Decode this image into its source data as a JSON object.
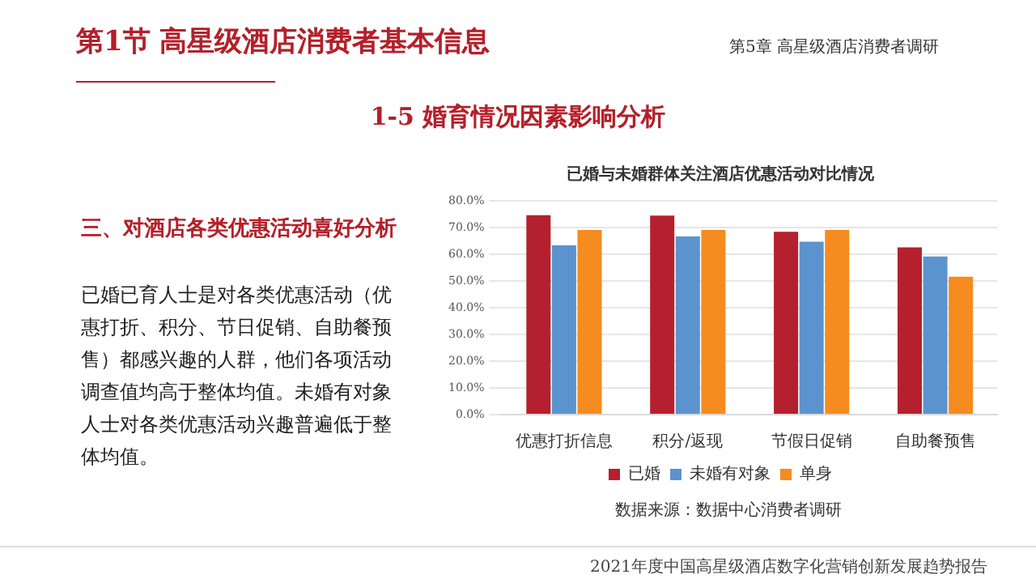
{
  "chart_data": {
    "type": "bar",
    "title": "已婚与未婚群体关注酒店优惠活动对比情况",
    "categories": [
      "优惠打折信息",
      "积分/返现",
      "节假日促销",
      "自助餐预售"
    ],
    "series": [
      {
        "name": "已婚",
        "color": "#b5202e",
        "values": [
          74.6,
          74.5,
          68.4,
          62.6
        ]
      },
      {
        "name": "未婚有对象",
        "color": "#5b93cf",
        "values": [
          63.3,
          66.7,
          64.7,
          59.2
        ]
      },
      {
        "name": "单身",
        "color": "#f68b1f",
        "values": [
          69.1,
          69.1,
          69.1,
          51.6
        ]
      }
    ],
    "ylim": [
      0,
      80
    ],
    "yticks": [
      {
        "value": 0,
        "label": "0.0%"
      },
      {
        "value": 10,
        "label": "10.0%"
      },
      {
        "value": 20,
        "label": "20.0%"
      },
      {
        "value": 30,
        "label": "30.0%"
      },
      {
        "value": 40,
        "label": "40.0%"
      },
      {
        "value": 50,
        "label": "50.0%"
      },
      {
        "value": 60,
        "label": "60.0%"
      },
      {
        "value": 70,
        "label": "70.0%"
      },
      {
        "value": 80,
        "label": "80.0%"
      }
    ],
    "grid": "y",
    "legend": "bottom",
    "annotations": [
      "第1节 高星级酒店消费者基本信息",
      "第5章 高星级酒店消费者调研",
      "1-5 婚育情况因素影响分析",
      "三、对酒店各类优惠活动喜好分析",
      "已婚已育人士是对各类优惠活动（优惠打折、积分、节日促销、自助餐预售）都感兴趣的人群，他们各项活动调查值均高于整体均值。未婚有对象人士对各类优惠活动兴趣普遍低于整体均值。",
      "数据来源：数据中心消费者调研",
      "2021年度中国高星级酒店数字化营销创新发展趋势报告"
    ]
  }
}
